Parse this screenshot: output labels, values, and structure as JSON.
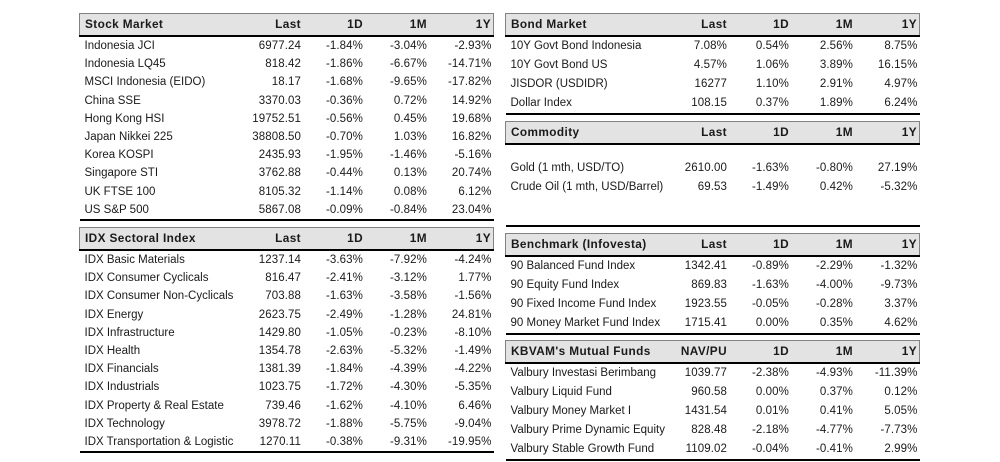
{
  "palette": {
    "header_bg": "#e3e3e3",
    "thin_border": "#828282",
    "thick_border": "#000000",
    "text": "#1a1a1a",
    "page_bg": "#ffffff"
  },
  "tables": {
    "stock_market": {
      "title": "Stock Market",
      "columns": [
        "Last",
        "1D",
        "1M",
        "1Y"
      ],
      "rows": [
        {
          "label": "Indonesia JCI",
          "values": [
            "6977.24",
            "-1.84%",
            "-3.04%",
            "-2.93%"
          ]
        },
        {
          "label": "Indonesia LQ45",
          "values": [
            "818.42",
            "-1.86%",
            "-6.67%",
            "-14.71%"
          ]
        },
        {
          "label": "MSCI Indonesia (EIDO)",
          "values": [
            "18.17",
            "-1.68%",
            "-9.65%",
            "-17.82%"
          ]
        },
        {
          "label": "China SSE",
          "values": [
            "3370.03",
            "-0.36%",
            "0.72%",
            "14.92%"
          ]
        },
        {
          "label": "Hong Kong HSI",
          "values": [
            "19752.51",
            "-0.56%",
            "0.45%",
            "19.68%"
          ]
        },
        {
          "label": "Japan Nikkei 225",
          "values": [
            "38808.50",
            "-0.70%",
            "1.03%",
            "16.82%"
          ]
        },
        {
          "label": "Korea KOSPI",
          "values": [
            "2435.93",
            "-1.95%",
            "-1.46%",
            "-5.16%"
          ]
        },
        {
          "label": "Singapore STI",
          "values": [
            "3762.88",
            "-0.44%",
            "0.13%",
            "20.74%"
          ]
        },
        {
          "label": "UK FTSE 100",
          "values": [
            "8105.32",
            "-1.14%",
            "0.08%",
            "6.12%"
          ]
        },
        {
          "label": "US S&P 500",
          "values": [
            "5867.08",
            "-0.09%",
            "-0.84%",
            "23.04%"
          ]
        }
      ]
    },
    "idx_sectoral": {
      "title": "IDX Sectoral Index",
      "columns": [
        "Last",
        "1D",
        "1M",
        "1Y"
      ],
      "rows": [
        {
          "label": "IDX Basic Materials",
          "values": [
            "1237.14",
            "-3.63%",
            "-7.92%",
            "-4.24%"
          ]
        },
        {
          "label": "IDX Consumer Cyclicals",
          "values": [
            "816.47",
            "-2.41%",
            "-3.12%",
            "1.77%"
          ]
        },
        {
          "label": "IDX Consumer Non-Cyclicals",
          "values": [
            "703.88",
            "-1.63%",
            "-3.58%",
            "-1.56%"
          ]
        },
        {
          "label": "IDX Energy",
          "values": [
            "2623.75",
            "-2.49%",
            "-1.28%",
            "24.81%"
          ]
        },
        {
          "label": "IDX Infrastructure",
          "values": [
            "1429.80",
            "-1.05%",
            "-0.23%",
            "-8.10%"
          ]
        },
        {
          "label": "IDX Health",
          "values": [
            "1354.78",
            "-2.63%",
            "-5.32%",
            "-1.49%"
          ]
        },
        {
          "label": "IDX Financials",
          "values": [
            "1381.39",
            "-1.84%",
            "-4.39%",
            "-4.22%"
          ]
        },
        {
          "label": "IDX Industrials",
          "values": [
            "1023.75",
            "-1.72%",
            "-4.30%",
            "-5.35%"
          ]
        },
        {
          "label": "IDX Property & Real Estate",
          "values": [
            "739.46",
            "-1.62%",
            "-4.10%",
            "6.46%"
          ]
        },
        {
          "label": "IDX Technology",
          "values": [
            "3978.72",
            "-1.88%",
            "-5.75%",
            "-9.04%"
          ]
        },
        {
          "label": "IDX Transportation & Logistic",
          "values": [
            "1270.11",
            "-0.38%",
            "-9.31%",
            "-19.95%"
          ]
        }
      ]
    },
    "bond_market": {
      "title": "Bond Market",
      "columns": [
        "Last",
        "1D",
        "1M",
        "1Y"
      ],
      "rows": [
        {
          "label": "10Y Govt Bond Indonesia",
          "values": [
            "7.08%",
            "0.54%",
            "2.56%",
            "8.75%"
          ]
        },
        {
          "label": "10Y Govt Bond US",
          "values": [
            "4.57%",
            "1.06%",
            "3.89%",
            "16.15%"
          ]
        },
        {
          "label": "JISDOR (USDIDR)",
          "values": [
            "16277",
            "1.10%",
            "2.91%",
            "4.97%"
          ]
        },
        {
          "label": "Dollar Index",
          "values": [
            "108.15",
            "0.37%",
            "1.89%",
            "6.24%"
          ]
        }
      ]
    },
    "commodity": {
      "title": "Commodity",
      "columns": [
        "Last",
        "1D",
        "1M",
        "1Y"
      ],
      "rows": [
        {
          "spacer": true
        },
        {
          "label": "Gold (1 mth, USD/TO)",
          "values": [
            "2610.00",
            "-1.63%",
            "-0.80%",
            "27.19%"
          ]
        },
        {
          "label": "Crude Oil (1 mth, USD/Barrel)",
          "values": [
            "69.53",
            "-1.49%",
            "0.42%",
            "-5.32%"
          ]
        },
        {
          "spacer": true
        },
        {
          "spacer": true
        }
      ]
    },
    "benchmark": {
      "title": "Benchmark (Infovesta)",
      "columns": [
        "Last",
        "1D",
        "1M",
        "1Y"
      ],
      "rows": [
        {
          "label": "90 Balanced Fund Index",
          "values": [
            "1342.41",
            "-0.89%",
            "-2.29%",
            "-1.32%"
          ]
        },
        {
          "label": "90 Equity Fund Index",
          "values": [
            "869.83",
            "-1.63%",
            "-4.00%",
            "-9.73%"
          ]
        },
        {
          "label": "90 Fixed Income Fund Index",
          "values": [
            "1923.55",
            "-0.05%",
            "-0.28%",
            "3.37%"
          ]
        },
        {
          "label": "90 Money Market Fund Index",
          "values": [
            "1715.41",
            "0.00%",
            "0.35%",
            "4.62%"
          ]
        }
      ]
    },
    "mutual_funds": {
      "title": "KBVAM's Mutual Funds",
      "columns": [
        "NAV/PU",
        "1D",
        "1M",
        "1Y"
      ],
      "rows": [
        {
          "label": "Valbury Investasi Berimbang",
          "values": [
            "1039.77",
            "-2.38%",
            "-4.93%",
            "-11.39%"
          ]
        },
        {
          "label": "Valbury Liquid Fund",
          "values": [
            "960.58",
            "0.00%",
            "0.37%",
            "0.12%"
          ]
        },
        {
          "label": "Valbury Money Market I",
          "values": [
            "1431.54",
            "0.01%",
            "0.41%",
            "5.05%"
          ]
        },
        {
          "label": "Valbury Prime Dynamic Equity",
          "values": [
            "828.48",
            "-2.18%",
            "-4.77%",
            "-7.73%"
          ]
        },
        {
          "label": "Valbury Stable Growth Fund",
          "values": [
            "1109.02",
            "-0.04%",
            "-0.41%",
            "2.99%"
          ]
        }
      ]
    }
  }
}
